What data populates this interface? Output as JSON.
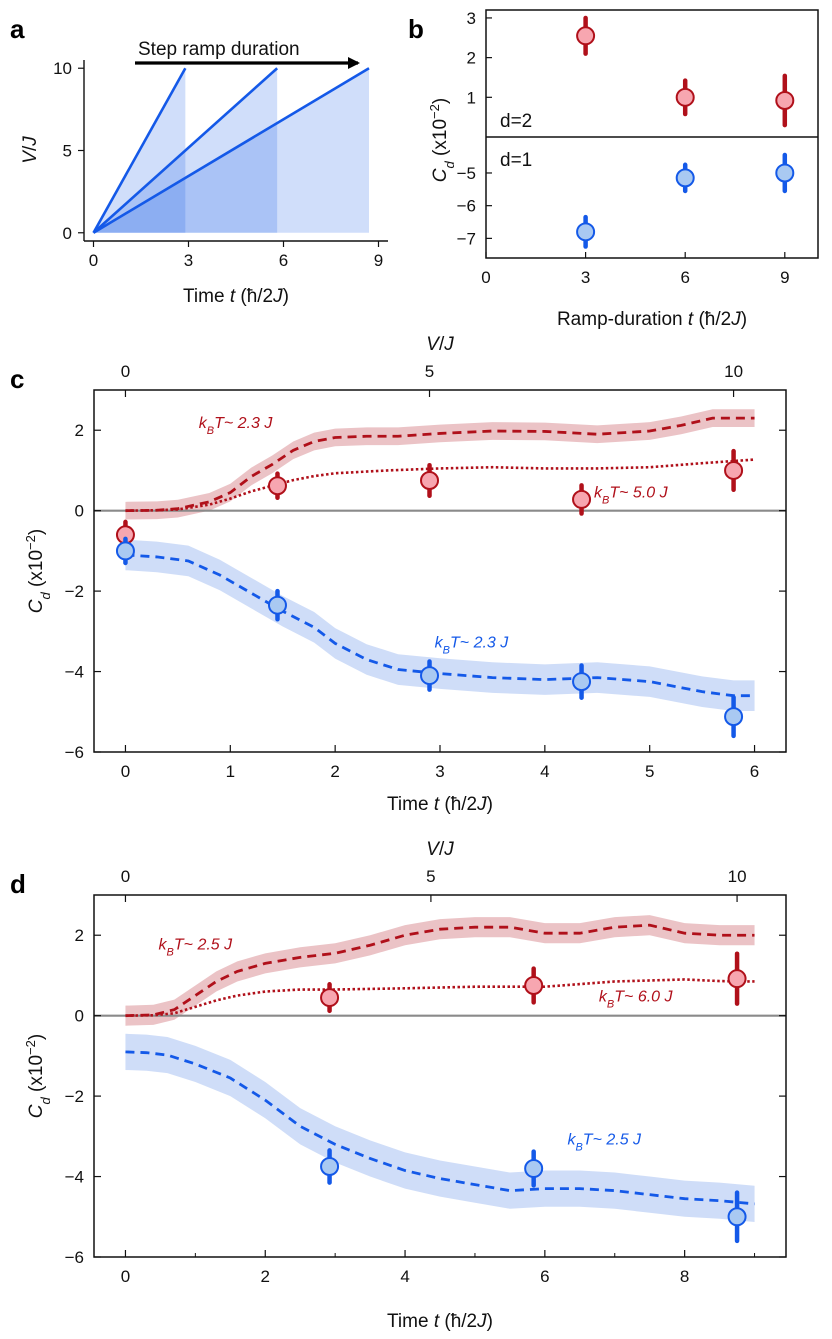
{
  "panel_labels": [
    "a",
    "b",
    "c",
    "d"
  ],
  "colors": {
    "d2": "#b0101a",
    "d2_fill": "#f7a6b0",
    "d2_band": "#e8b8bc",
    "d1": "#1459e8",
    "d1_fill": "#a9c9f2",
    "d1_band": "#c7d7f7",
    "axis": "#111111",
    "zero_line": "#8a8a8a"
  },
  "chart_data": [
    {
      "id": "a",
      "type": "line",
      "title": "",
      "arrow_label": "Step ramp duration",
      "xlabel": "Time t (ħ/2J)",
      "ylabel": "V/J",
      "xlim": [
        -0.3,
        9.3
      ],
      "ylim": [
        -0.5,
        10.5
      ],
      "xticks": [
        0,
        3,
        6,
        9
      ],
      "yticks": [
        0,
        5,
        10
      ],
      "series": [
        {
          "name": "ramp 3",
          "x": [
            0,
            2.9
          ],
          "y": [
            0,
            10
          ]
        },
        {
          "name": "ramp 6",
          "x": [
            0,
            5.8
          ],
          "y": [
            0,
            10
          ]
        },
        {
          "name": "ramp 9",
          "x": [
            0,
            8.7
          ],
          "y": [
            0,
            10
          ]
        }
      ],
      "shaded_until": [
        2.9,
        5.8,
        8.7
      ]
    },
    {
      "id": "b",
      "type": "scatter",
      "ylabel": "C_d (x10⁻²)",
      "xlabel": "Ramp-duration t (ħ/2J)",
      "xlim": [
        0,
        10
      ],
      "xticks": [
        0,
        3,
        6,
        9
      ],
      "top": {
        "label": "d=2",
        "ylim": [
          0,
          3.2
        ],
        "yticks": [
          1,
          2,
          3
        ],
        "x": [
          3,
          6,
          9
        ],
        "y": [
          2.55,
          1.0,
          0.92
        ],
        "err": [
          0.45,
          0.42,
          0.62
        ]
      },
      "bottom": {
        "label": "d=1",
        "ylim": [
          -7.6,
          -3.9
        ],
        "yticks": [
          -5,
          -6,
          -7
        ],
        "x": [
          3,
          6,
          9
        ],
        "y": [
          -6.8,
          -5.15,
          -5.0
        ],
        "err": [
          0.45,
          0.4,
          0.55
        ]
      }
    },
    {
      "id": "c",
      "type": "line",
      "xlabel": "Time t (ħ/2J)",
      "ylabel": "C_d (x10⁻²)",
      "top_xlabel": "V/J",
      "xlim": [
        -0.3,
        6.3
      ],
      "ylim": [
        -6,
        3
      ],
      "xticks": [
        0,
        1,
        2,
        3,
        4,
        5,
        6
      ],
      "yticks": [
        -6,
        -4,
        -2,
        0,
        2
      ],
      "top_ticks": [
        {
          "label": "0",
          "x": 0
        },
        {
          "label": "5",
          "x": 2.9
        },
        {
          "label": "10",
          "x": 5.8
        }
      ],
      "annotations": [
        {
          "text_prefix": "k",
          "sub": "B",
          "text_suffix": "T~ 2.3 J",
          "color": "d2",
          "x": 1.05,
          "y": 2.05
        },
        {
          "text_prefix": "k",
          "sub": "B",
          "text_suffix": "T~ 5.0 J",
          "color": "d2",
          "x": 4.82,
          "y": 0.33
        },
        {
          "text_prefix": "k",
          "sub": "B",
          "text_suffix": "T~ 2.3 J",
          "color": "d1",
          "x": 3.3,
          "y": -3.4
        }
      ],
      "series": [
        {
          "name": "d=2 kBT~2.3 J",
          "style": "dashed",
          "color": "d2",
          "band": 0.22,
          "x": [
            0,
            0.3,
            0.5,
            0.8,
            1.0,
            1.2,
            1.4,
            1.6,
            1.8,
            2.0,
            2.3,
            2.6,
            3.0,
            3.5,
            4.0,
            4.5,
            5.0,
            5.3,
            5.6,
            6.0
          ],
          "y": [
            0,
            0.01,
            0.05,
            0.22,
            0.45,
            0.85,
            1.15,
            1.5,
            1.72,
            1.82,
            1.85,
            1.85,
            1.92,
            1.98,
            1.97,
            1.9,
            1.98,
            2.12,
            2.3,
            2.3
          ]
        },
        {
          "name": "d=2 kBT~5.0 J",
          "style": "dotted",
          "color": "d2",
          "x": [
            0,
            0.3,
            0.5,
            0.8,
            1.0,
            1.2,
            1.4,
            1.6,
            1.8,
            2.0,
            2.5,
            3.0,
            3.5,
            4.0,
            4.5,
            5.0,
            5.5,
            6.0
          ],
          "y": [
            0,
            0.01,
            0.03,
            0.15,
            0.3,
            0.48,
            0.62,
            0.76,
            0.86,
            0.93,
            1.0,
            1.05,
            1.08,
            1.05,
            1.05,
            1.08,
            1.18,
            1.27
          ]
        },
        {
          "name": "d=1 kBT~2.3 J",
          "style": "dashed",
          "color": "d1",
          "band": 0.38,
          "x": [
            0,
            0.3,
            0.6,
            0.9,
            1.2,
            1.5,
            1.8,
            2.0,
            2.3,
            2.6,
            3.0,
            3.5,
            4.0,
            4.5,
            5.0,
            5.5,
            5.8,
            6.0
          ],
          "y": [
            -1.1,
            -1.15,
            -1.25,
            -1.6,
            -2.05,
            -2.5,
            -2.9,
            -3.3,
            -3.7,
            -3.95,
            -4.05,
            -4.15,
            -4.2,
            -4.15,
            -4.25,
            -4.5,
            -4.6,
            -4.6
          ]
        }
      ],
      "points": [
        {
          "group": "d2",
          "x": [
            0,
            1.45,
            2.9,
            4.35,
            5.8
          ],
          "y": [
            -0.6,
            0.62,
            0.75,
            0.28,
            1.0
          ],
          "err": [
            0.32,
            0.3,
            0.38,
            0.35,
            0.48
          ]
        },
        {
          "group": "d1",
          "x": [
            0,
            1.45,
            2.9,
            4.35,
            5.8
          ],
          "y": [
            -1.0,
            -2.35,
            -4.1,
            -4.25,
            -5.12
          ],
          "err": [
            0.3,
            0.35,
            0.35,
            0.4,
            0.48
          ]
        }
      ]
    },
    {
      "id": "d",
      "type": "line",
      "xlabel": "Time t (ħ/2J)",
      "ylabel": "C_d (x10⁻²)",
      "top_xlabel": "V/J",
      "xlim": [
        -0.45,
        9.45
      ],
      "ylim": [
        -6,
        3
      ],
      "xticks": [
        0,
        2,
        4,
        6,
        8
      ],
      "xtick_minor": [
        1,
        3,
        5,
        7,
        9
      ],
      "yticks": [
        -6,
        -4,
        -2,
        0,
        2
      ],
      "top_ticks": [
        {
          "label": "0",
          "x": 0
        },
        {
          "label": "5",
          "x": 4.37
        },
        {
          "label": "10",
          "x": 8.75
        }
      ],
      "annotations": [
        {
          "text_prefix": "k",
          "sub": "B",
          "text_suffix": "T~ 2.5 J",
          "color": "d2",
          "x": 1.0,
          "y": 1.65
        },
        {
          "text_prefix": "k",
          "sub": "B",
          "text_suffix": "T~ 6.0 J",
          "color": "d2",
          "x": 7.3,
          "y": 0.35
        },
        {
          "text_prefix": "k",
          "sub": "B",
          "text_suffix": "T~ 2.5 J",
          "color": "d1",
          "x": 6.85,
          "y": -3.2
        }
      ],
      "series": [
        {
          "name": "d=2 kBT~2.5 J",
          "style": "dashed",
          "color": "d2",
          "band": 0.25,
          "x": [
            0,
            0.4,
            0.7,
            1.0,
            1.3,
            1.6,
            2.0,
            2.5,
            3.0,
            3.5,
            4.0,
            4.5,
            5.0,
            5.5,
            6.0,
            6.5,
            7.0,
            7.5,
            8.0,
            8.5,
            9.0
          ],
          "y": [
            0,
            0.02,
            0.15,
            0.5,
            0.85,
            1.1,
            1.3,
            1.45,
            1.55,
            1.75,
            2.0,
            2.15,
            2.2,
            2.2,
            2.05,
            2.05,
            2.2,
            2.25,
            2.05,
            2.0,
            2.0
          ]
        },
        {
          "name": "d=2 kBT~6.0 J",
          "style": "dotted",
          "color": "d2",
          "x": [
            0,
            0.4,
            0.7,
            1.0,
            1.3,
            1.6,
            2.0,
            2.5,
            3.0,
            4.0,
            5.0,
            6.0,
            7.0,
            8.0,
            8.5,
            9.0
          ],
          "y": [
            0,
            0.01,
            0.06,
            0.22,
            0.38,
            0.5,
            0.6,
            0.65,
            0.65,
            0.68,
            0.72,
            0.72,
            0.85,
            0.9,
            0.86,
            0.85
          ]
        },
        {
          "name": "d=1 kBT~2.5 J",
          "style": "dashed",
          "color": "d1",
          "band": 0.45,
          "x": [
            0,
            0.3,
            0.6,
            1.0,
            1.5,
            2.0,
            2.5,
            3.0,
            3.5,
            4.0,
            4.5,
            5.0,
            5.5,
            6.0,
            6.5,
            7.0,
            7.5,
            8.0,
            8.5,
            9.0
          ],
          "y": [
            -0.9,
            -0.92,
            -0.98,
            -1.2,
            -1.55,
            -2.1,
            -2.75,
            -3.2,
            -3.55,
            -3.85,
            -4.05,
            -4.2,
            -4.35,
            -4.3,
            -4.3,
            -4.35,
            -4.45,
            -4.55,
            -4.6,
            -4.68
          ]
        }
      ],
      "points": [
        {
          "group": "d2",
          "x": [
            2.92,
            5.84,
            8.75
          ],
          "y": [
            0.45,
            0.75,
            0.92
          ],
          "err": [
            0.33,
            0.42,
            0.62
          ]
        },
        {
          "group": "d1",
          "x": [
            2.92,
            5.84,
            8.75
          ],
          "y": [
            -3.75,
            -3.8,
            -5.0
          ],
          "err": [
            0.4,
            0.42,
            0.6
          ]
        }
      ]
    }
  ]
}
